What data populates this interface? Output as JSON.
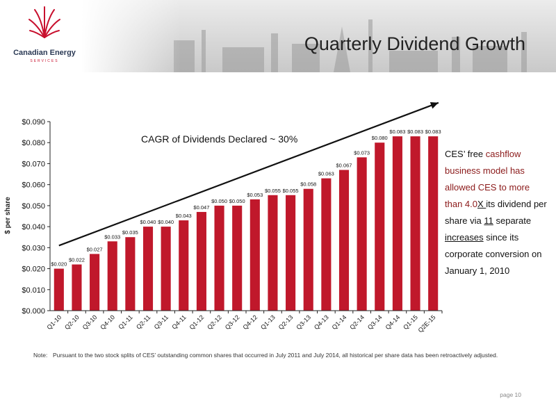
{
  "header": {
    "title": "Quarterly Dividend Growth",
    "logo_name": "Canadian Energy",
    "logo_sub": "SERVICES"
  },
  "side_text": {
    "t1": "CES’ free ",
    "t2": "cashflow business model has allowed CES to more than 4.0",
    "t3": "X ",
    "t4": "its dividend per share via ",
    "t5": "11",
    "t6": " separate ",
    "t7": "increases",
    "t8": " since its corporate conversion on January 1, 2010"
  },
  "note": {
    "label": "Note:",
    "text": "Pursuant to the two stock splits of CES’ outstanding common shares that occurred in July 2011 and July 2014, all historical per share data has been retroactively adjusted."
  },
  "page": {
    "label": "page 10"
  },
  "colors": {
    "bar": "#c0182b",
    "accent": "#8b1a1a"
  },
  "chart_data": {
    "type": "bar",
    "title": "",
    "xlabel": "",
    "ylabel": "$ per share",
    "annotation": "CAGR of Dividends Declared ~ 30%",
    "ylim": [
      0,
      0.09
    ],
    "yticks": [
      0,
      0.01,
      0.02,
      0.03,
      0.04,
      0.05,
      0.06,
      0.07,
      0.08,
      0.09
    ],
    "ytick_labels": [
      "$0.000",
      "$0.010",
      "$0.020",
      "$0.030",
      "$0.040",
      "$0.050",
      "$0.060",
      "$0.070",
      "$0.080",
      "$0.090"
    ],
    "grid": false,
    "categories": [
      "Q1-10",
      "Q2-10",
      "Q3-10",
      "Q4-10",
      "Q1-11",
      "Q2-11",
      "Q3-11",
      "Q4-11",
      "Q1-12",
      "Q2-12",
      "Q3-12",
      "Q4-12",
      "Q1-13",
      "Q2-13",
      "Q3-13",
      "Q4-13",
      "Q1-14",
      "Q2-14",
      "Q3-14",
      "Q4-14",
      "Q1-15",
      "Q2E-15"
    ],
    "values": [
      0.02,
      0.022,
      0.027,
      0.033,
      0.035,
      0.04,
      0.04,
      0.043,
      0.047,
      0.05,
      0.05,
      0.053,
      0.055,
      0.055,
      0.058,
      0.063,
      0.067,
      0.073,
      0.08,
      0.083,
      0.083,
      0.083
    ],
    "value_labels": [
      "$0.020",
      "$0.022",
      "$0.027",
      "$0.033",
      "$0.035",
      "$0.040",
      "$0.040",
      "$0.043",
      "$0.047",
      "$0.050",
      "$0.050",
      "$0.053",
      "$0.055",
      "$0.055",
      "$0.058",
      "$0.063",
      "$0.067",
      "$0.073",
      "$0.080",
      "$0.083",
      "$0.083",
      "$0.083"
    ],
    "trend_arrow": {
      "from": [
        0,
        0.031
      ],
      "to": [
        21.3,
        0.099
      ]
    }
  }
}
